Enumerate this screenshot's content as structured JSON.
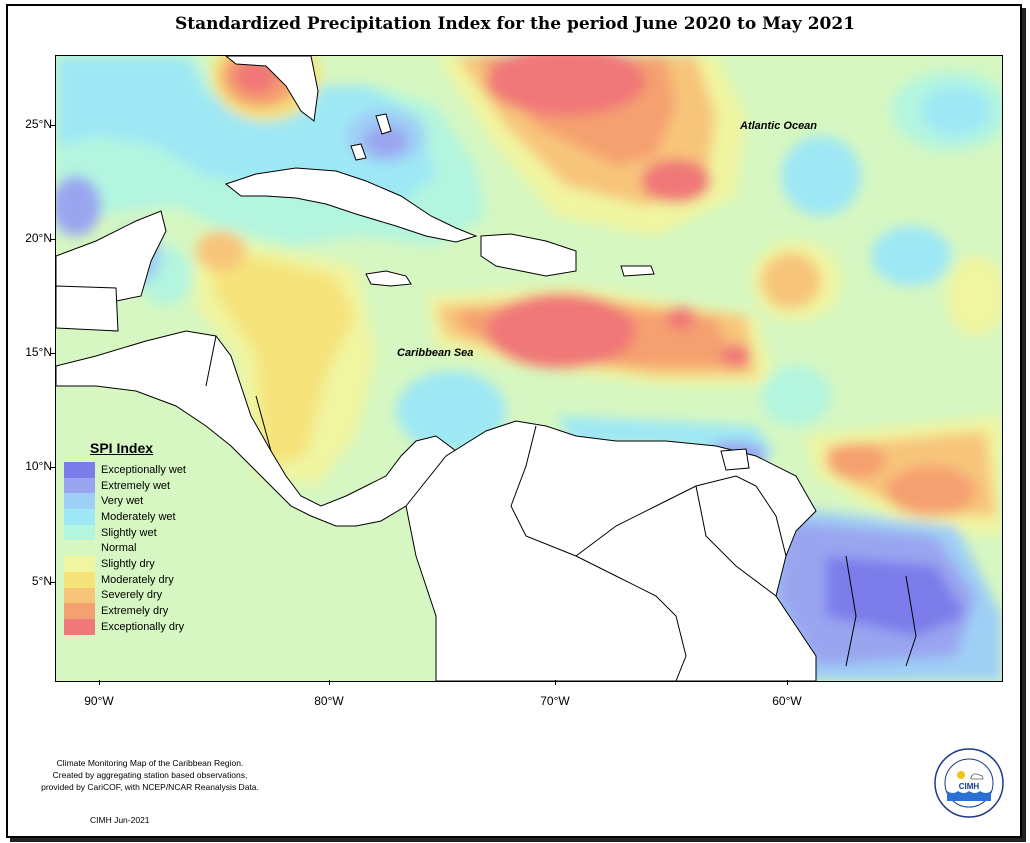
{
  "title": "Standardized Precipitation Index for the period June 2020 to May 2021",
  "map": {
    "lat_labels": [
      "25°N",
      "20°N",
      "15°N",
      "10°N",
      "5°N"
    ],
    "lon_labels": [
      "90°W",
      "80°W",
      "70°W",
      "60°W"
    ],
    "ocean_labels": {
      "atlantic": "Atlantic Ocean",
      "caribbean": "Caribbean Sea"
    }
  },
  "legend": {
    "title": "SPI Index",
    "items": [
      {
        "label": "Exceptionally wet",
        "color": "#7b7bea"
      },
      {
        "label": "Extremely wet",
        "color": "#9aa5f0"
      },
      {
        "label": "Very wet",
        "color": "#9ecff5"
      },
      {
        "label": "Moderately wet",
        "color": "#9ee8f5"
      },
      {
        "label": "Slightly wet",
        "color": "#b3f5df"
      },
      {
        "label": "Normal",
        "color": "#d6f7c1"
      },
      {
        "label": "Slightly dry",
        "color": "#f0f5a0"
      },
      {
        "label": "Moderately dry",
        "color": "#f5e37a"
      },
      {
        "label": "Severely dry",
        "color": "#f7c57a"
      },
      {
        "label": "Extremely dry",
        "color": "#f5a070"
      },
      {
        "label": "Exceptionally dry",
        "color": "#f07878"
      }
    ]
  },
  "caption": {
    "line1": "Climate Monitoring Map of the Caribbean Region.",
    "line2": "Created by aggregating station based observations,",
    "line3": "provided by CariCOF, with NCEP/NCAR Reanalysis Data.",
    "credit": "CIMH Jun-2021"
  },
  "logo": {
    "text": "CIMH",
    "ring_text": "Caribbean Institute for Meteorology and Hydrology"
  }
}
